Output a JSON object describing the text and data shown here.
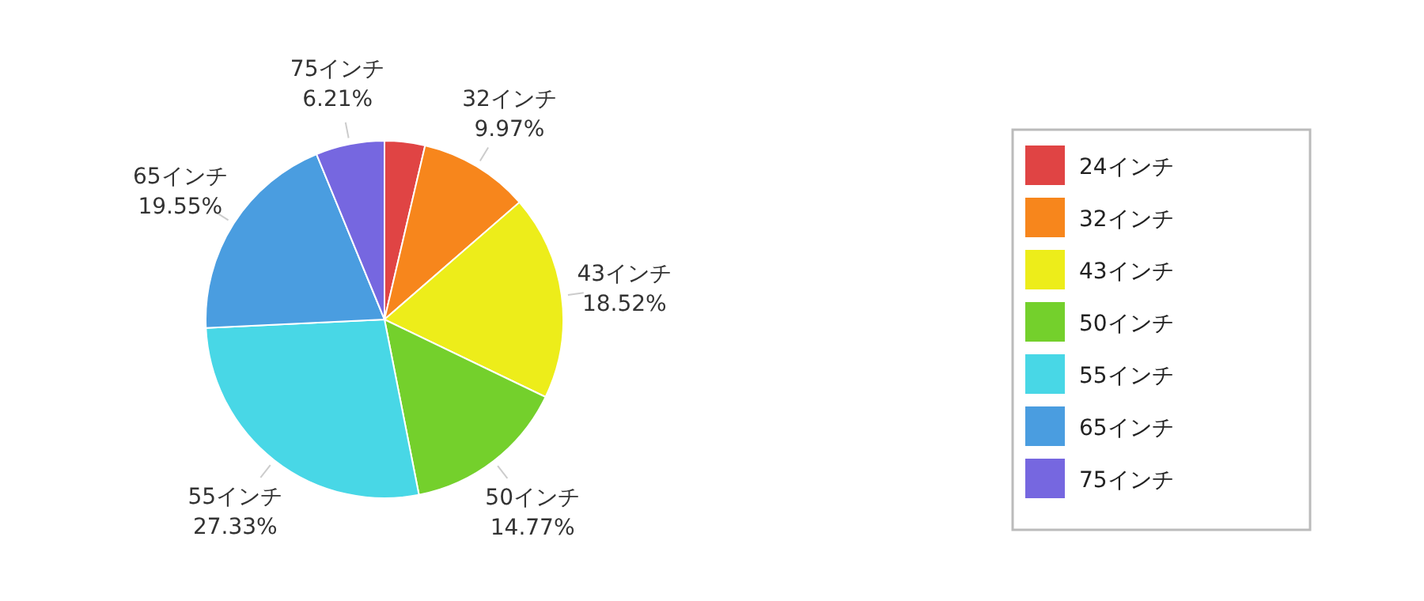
{
  "chart_data": {
    "type": "pie",
    "categories": [
      "24インチ",
      "32インチ",
      "43インチ",
      "50インチ",
      "55インチ",
      "65インチ",
      "75インチ"
    ],
    "values": [
      3.65,
      9.97,
      18.52,
      14.77,
      27.33,
      19.55,
      6.21
    ],
    "colors": [
      "#e04444",
      "#f7861c",
      "#eded1a",
      "#74d02c",
      "#48d7e6",
      "#4a9de0",
      "#7667e0"
    ],
    "value_labels": [
      null,
      "9.97%",
      "18.52%",
      "14.77%",
      "27.33%",
      "19.55%",
      "6.21%"
    ],
    "legend": "right"
  }
}
